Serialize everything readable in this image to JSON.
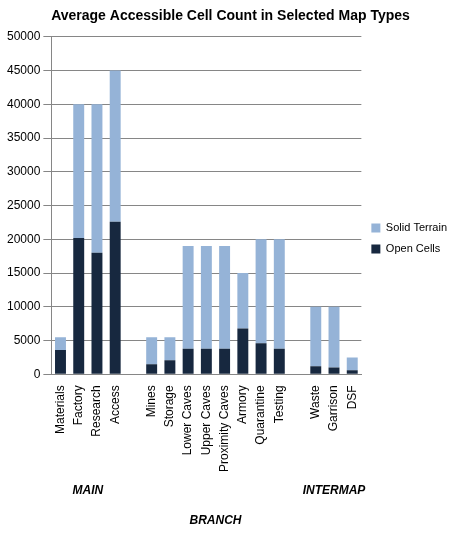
{
  "chart_data": {
    "type": "bar",
    "title": "Average Accessible Cell Count in Selected Map Types",
    "categories": [
      "Materials",
      "Factory",
      "Research",
      "Access",
      null,
      "Mines",
      "Storage",
      "Lower Caves",
      "Upper Caves",
      "Proximity Caves",
      "Armory",
      "Quarantine",
      "Testing",
      null,
      "Waste",
      "Garrison",
      "DSF"
    ],
    "series": [
      {
        "name": "Open Cells",
        "color": "#17283f",
        "values": [
          3600,
          20200,
          18000,
          22600,
          null,
          1500,
          2100,
          3800,
          3800,
          3800,
          6800,
          4600,
          3800,
          null,
          1200,
          1000,
          600
        ]
      },
      {
        "name": "Solid Terrain",
        "color": "#95b3d7",
        "values": [
          1900,
          19800,
          22000,
          22400,
          null,
          4000,
          3400,
          15200,
          15200,
          15200,
          8200,
          15400,
          16200,
          null,
          8800,
          9000,
          1900
        ]
      }
    ],
    "annotations": [
      "MAIN",
      "BRANCH",
      "INTERMAP"
    ],
    "ylim": [
      0,
      50000
    ],
    "yticks": [
      0,
      5000,
      10000,
      15000,
      20000,
      25000,
      30000,
      35000,
      40000,
      45000,
      50000
    ],
    "grid": true,
    "stacked": true,
    "legend": "right"
  }
}
